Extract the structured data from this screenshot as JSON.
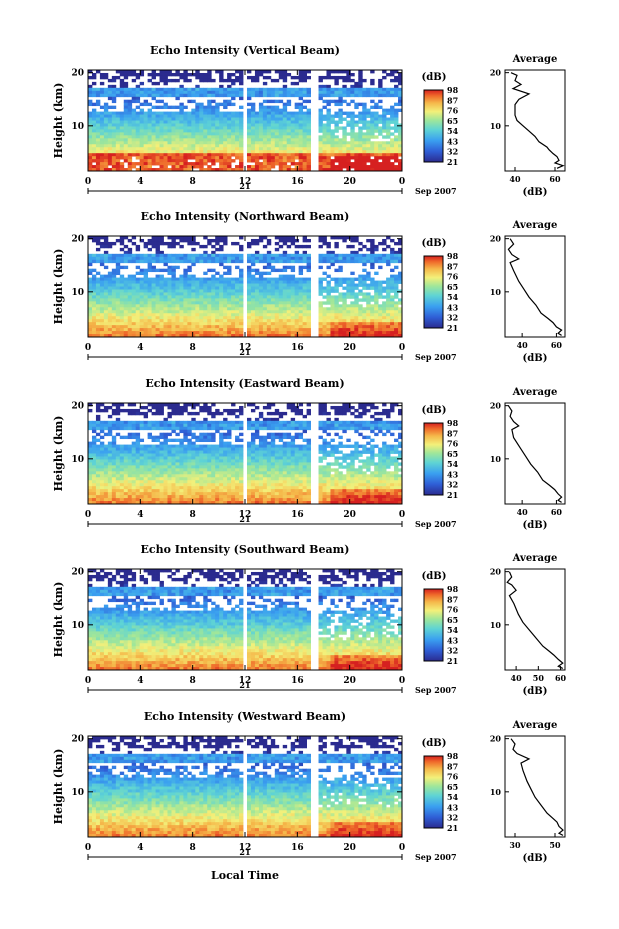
{
  "figure": {
    "xlabel": "Local Time",
    "colorbar_unit_label": "(dB)",
    "colorbar_ticks": [
      "21",
      "32",
      "43",
      "54",
      "65",
      "76",
      "87",
      "98"
    ],
    "date_label": "Sep 2007",
    "day_label": "21",
    "avg_title": "Average",
    "avg_xlabel": "(dB)"
  },
  "chart_data": [
    {
      "type": "heatmap",
      "title": "Echo Intensity (Vertical Beam)",
      "ylabel": "Height (km)",
      "x_ticks": [
        "0",
        "4",
        "8",
        "12",
        "16",
        "20",
        "0"
      ],
      "y_ticks": [
        "20",
        "10"
      ],
      "xlim": [
        0,
        24
      ],
      "ylim": [
        1.5,
        20.5
      ],
      "data_gaps_hours": [
        [
          11.7,
          12.2
        ],
        [
          17.0,
          17.6
        ]
      ],
      "average_profile": {
        "xlabel": "(dB)",
        "x_ticks": [
          "40",
          "60"
        ],
        "xlim": [
          35,
          65
        ],
        "points": [
          [
            38,
            20
          ],
          [
            41,
            19.5
          ],
          [
            40,
            18.5
          ],
          [
            43,
            17.8
          ],
          [
            39,
            17.0
          ],
          [
            47,
            16.0
          ],
          [
            42,
            15.0
          ],
          [
            40,
            14.0
          ],
          [
            40,
            12.0
          ],
          [
            41,
            11.0
          ],
          [
            44,
            10.0
          ],
          [
            47,
            9.0
          ],
          [
            50,
            8.0
          ],
          [
            52,
            7.0
          ],
          [
            56,
            6.0
          ],
          [
            57,
            5.5
          ],
          [
            59,
            4.8
          ],
          [
            61,
            4.2
          ],
          [
            62,
            3.5
          ],
          [
            60,
            3.0
          ],
          [
            64,
            2.5
          ],
          [
            61,
            2.0
          ]
        ]
      }
    },
    {
      "type": "heatmap",
      "title": "Echo Intensity (Northward Beam)",
      "ylabel": "Height (km)",
      "x_ticks": [
        "0",
        "4",
        "8",
        "12",
        "16",
        "20",
        "0"
      ],
      "y_ticks": [
        "20",
        "10"
      ],
      "xlim": [
        0,
        24
      ],
      "ylim": [
        1.5,
        20.5
      ],
      "data_gaps_hours": [
        [
          11.7,
          12.2
        ],
        [
          17.0,
          17.6
        ]
      ],
      "average_profile": {
        "xlabel": "(dB)",
        "x_ticks": [
          "40",
          "60"
        ],
        "xlim": [
          30,
          65
        ],
        "points": [
          [
            33,
            20
          ],
          [
            35,
            19
          ],
          [
            32,
            18
          ],
          [
            34,
            17
          ],
          [
            38,
            16.2
          ],
          [
            33,
            15.5
          ],
          [
            35,
            14
          ],
          [
            38,
            12
          ],
          [
            41,
            10.5
          ],
          [
            44,
            9
          ],
          [
            48,
            7.5
          ],
          [
            51,
            6
          ],
          [
            55,
            5
          ],
          [
            58,
            4.2
          ],
          [
            60,
            3.4
          ],
          [
            63,
            2.8
          ],
          [
            61,
            2.2
          ],
          [
            63,
            1.8
          ]
        ]
      }
    },
    {
      "type": "heatmap",
      "title": "Echo Intensity (Eastward Beam)",
      "ylabel": "Height (km)",
      "x_ticks": [
        "0",
        "4",
        "8",
        "12",
        "16",
        "20",
        "0"
      ],
      "y_ticks": [
        "20",
        "10"
      ],
      "xlim": [
        0,
        24
      ],
      "ylim": [
        1.5,
        20.5
      ],
      "data_gaps_hours": [
        [
          11.7,
          12.2
        ],
        [
          17.0,
          17.6
        ]
      ],
      "average_profile": {
        "xlabel": "(dB)",
        "x_ticks": [
          "40",
          "60"
        ],
        "xlim": [
          30,
          65
        ],
        "points": [
          [
            32,
            20
          ],
          [
            34,
            19
          ],
          [
            33,
            18
          ],
          [
            35,
            17
          ],
          [
            38,
            16.2
          ],
          [
            34,
            15.5
          ],
          [
            35,
            14
          ],
          [
            39,
            12
          ],
          [
            42,
            10.5
          ],
          [
            45,
            9
          ],
          [
            49,
            7.5
          ],
          [
            52,
            6
          ],
          [
            56,
            5
          ],
          [
            59,
            4.2
          ],
          [
            61,
            3.4
          ],
          [
            63,
            2.8
          ],
          [
            61,
            2.2
          ],
          [
            63,
            1.8
          ]
        ]
      }
    },
    {
      "type": "heatmap",
      "title": "Echo Intensity (Southward Beam)",
      "ylabel": "Height (km)",
      "x_ticks": [
        "0",
        "4",
        "8",
        "12",
        "16",
        "20",
        "0"
      ],
      "y_ticks": [
        "20",
        "10"
      ],
      "xlim": [
        0,
        24
      ],
      "ylim": [
        1.5,
        20.5
      ],
      "data_gaps_hours": [
        [
          11.7,
          12.2
        ],
        [
          17.0,
          17.6
        ]
      ],
      "average_profile": {
        "xlabel": "(dB)",
        "x_ticks": [
          "40",
          "50",
          "60"
        ],
        "xlim": [
          35,
          62
        ],
        "points": [
          [
            37,
            20
          ],
          [
            38,
            19
          ],
          [
            36,
            18
          ],
          [
            38,
            17.5
          ],
          [
            40,
            16.5
          ],
          [
            37,
            15.5
          ],
          [
            39,
            14
          ],
          [
            41,
            12
          ],
          [
            43,
            10.5
          ],
          [
            46,
            9
          ],
          [
            49,
            7.5
          ],
          [
            52,
            6
          ],
          [
            55,
            5
          ],
          [
            57,
            4.3
          ],
          [
            59,
            3.5
          ],
          [
            61,
            2.8
          ],
          [
            59,
            2.2
          ],
          [
            61,
            1.8
          ]
        ]
      }
    },
    {
      "type": "heatmap",
      "title": "Echo Intensity (Westward Beam)",
      "ylabel": "Height (km)",
      "x_ticks": [
        "0",
        "4",
        "8",
        "12",
        "16",
        "20",
        "0"
      ],
      "y_ticks": [
        "20",
        "10"
      ],
      "xlim": [
        0,
        24
      ],
      "ylim": [
        1.5,
        20.5
      ],
      "data_gaps_hours": [
        [
          11.7,
          12.2
        ],
        [
          17.0,
          17.6
        ]
      ],
      "average_profile": {
        "xlabel": "(dB)",
        "x_ticks": [
          "30",
          "50"
        ],
        "xlim": [
          25,
          55
        ],
        "points": [
          [
            28,
            20
          ],
          [
            30,
            19
          ],
          [
            29,
            18
          ],
          [
            31,
            17.2
          ],
          [
            37,
            16.2
          ],
          [
            33,
            15.4
          ],
          [
            34,
            14
          ],
          [
            36,
            12
          ],
          [
            38,
            10.5
          ],
          [
            40,
            9
          ],
          [
            43,
            7.5
          ],
          [
            46,
            6
          ],
          [
            49,
            5
          ],
          [
            51,
            4.3
          ],
          [
            52,
            3.5
          ],
          [
            54,
            2.8
          ],
          [
            52,
            2.2
          ],
          [
            54,
            1.8
          ]
        ]
      }
    }
  ]
}
